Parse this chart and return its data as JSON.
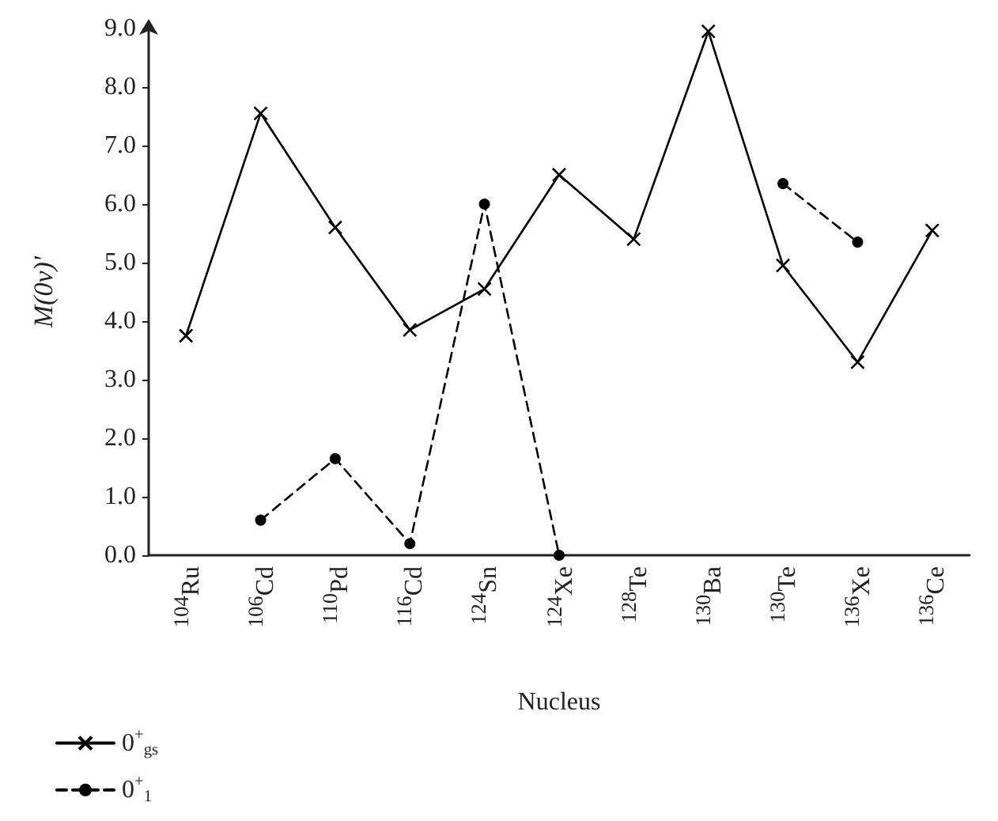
{
  "chart_data": {
    "type": "line",
    "xlabel": "Nucleus",
    "ylabel": "M(0ν)′",
    "categories": [
      "$^{104}$Ru",
      "$^{106}$Cd",
      "$^{110}$Pd",
      "$^{116}$Cd",
      "$^{124}$Sn",
      "$^{124}$Xe",
      "$^{128}$Te",
      "$^{130}$Ba",
      "$^{130}$Te",
      "$^{136}$Xe",
      "$^{136}$Ce"
    ],
    "series": [
      {
        "name": "0$^{+}$$_{gs}$",
        "color": "#000000",
        "marker": "cross",
        "line_style": "solid",
        "values": [
          3.75,
          7.55,
          5.6,
          3.85,
          4.55,
          6.5,
          5.4,
          8.95,
          4.95,
          3.3,
          5.55
        ]
      },
      {
        "name": "0$^{+}$$_{1}$",
        "color": "#000000",
        "marker": "circle",
        "line_style": "dashed",
        "values": [
          null,
          0.6,
          1.65,
          0.2,
          6.0,
          0.0,
          null,
          null,
          6.35,
          5.35,
          null
        ]
      }
    ],
    "ylim": [
      0,
      9
    ],
    "yticks": [
      {
        "value": 0,
        "label": "0.0"
      },
      {
        "value": 1,
        "label": "1.0"
      },
      {
        "value": 2,
        "label": "2.0"
      },
      {
        "value": 3,
        "label": "3.0"
      },
      {
        "value": 4,
        "label": "4.0"
      },
      {
        "value": 5,
        "label": "5.0"
      },
      {
        "value": 6,
        "label": "6.0"
      },
      {
        "value": 7,
        "label": "7.0"
      },
      {
        "value": 8,
        "label": "8.0"
      },
      {
        "value": 9,
        "label": "9.0"
      }
    ],
    "grid": false,
    "legend": "bottom left"
  }
}
